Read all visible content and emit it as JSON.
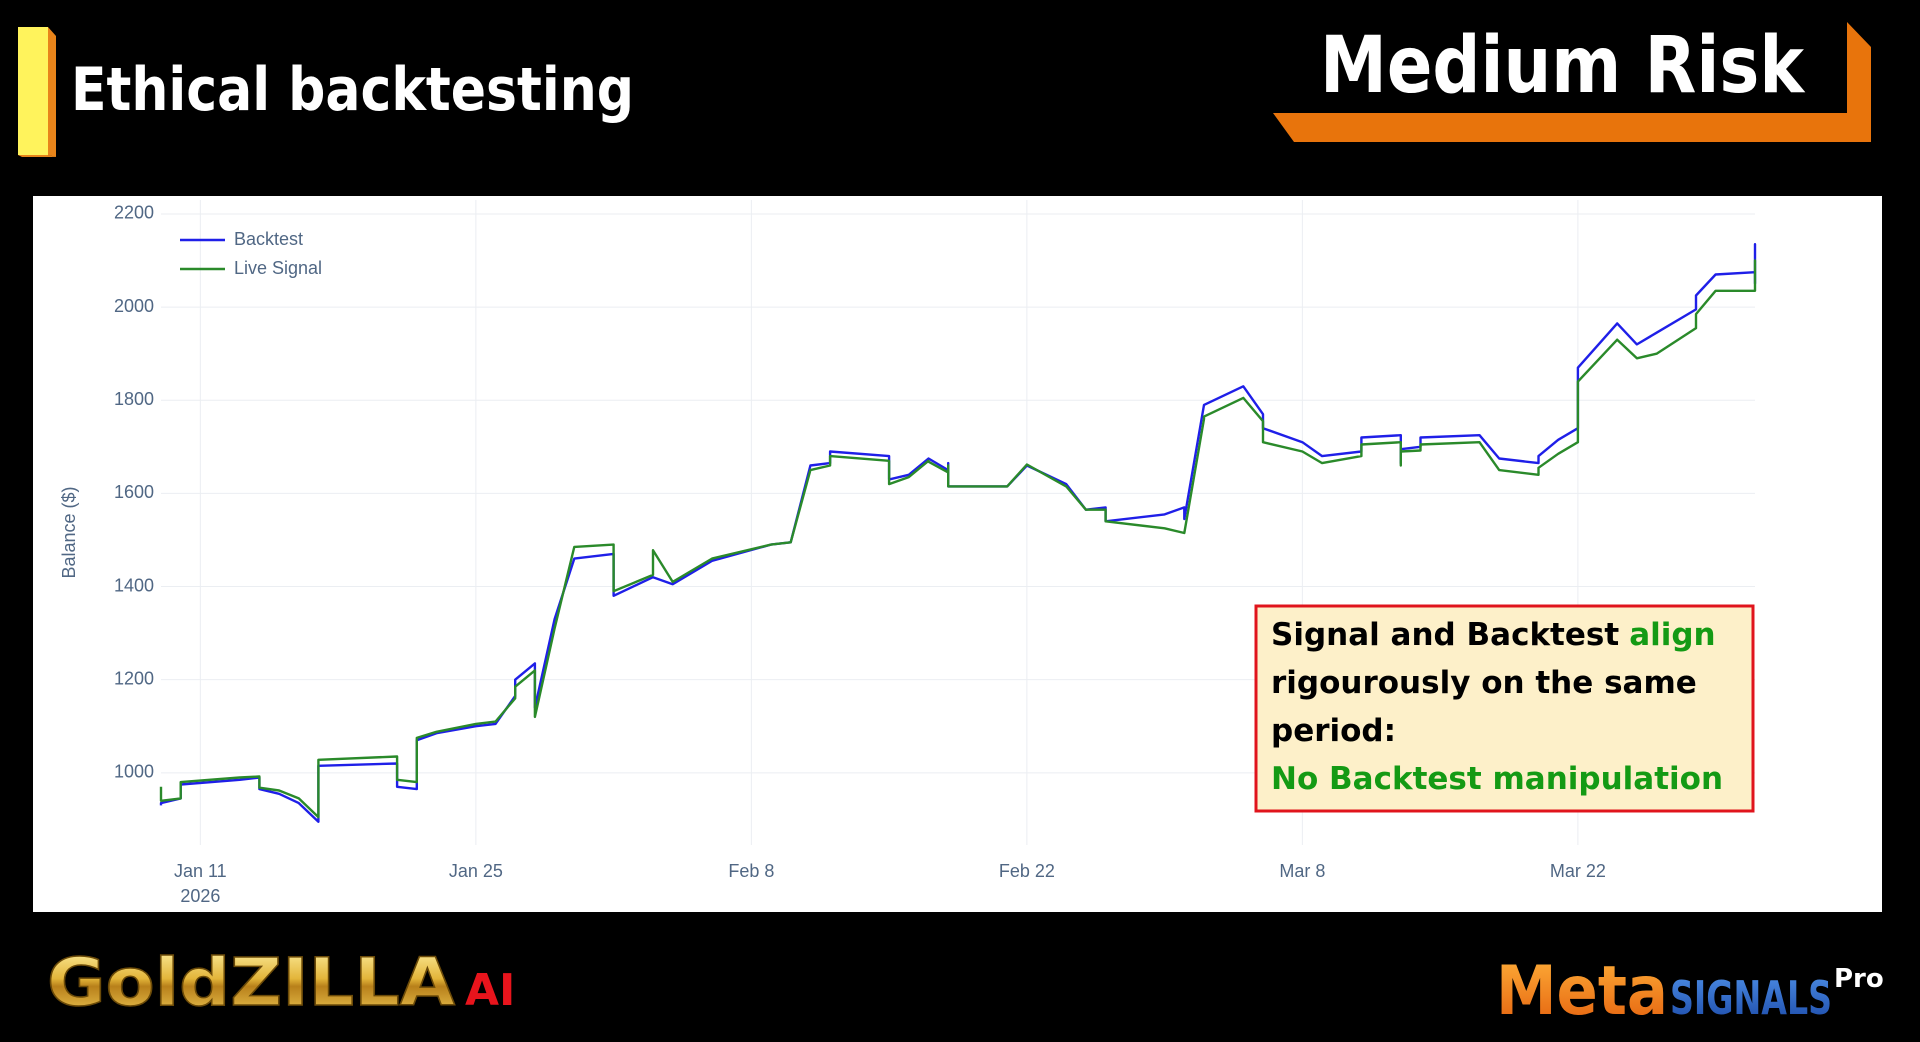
{
  "header": {
    "title": "Ethical backtesting",
    "badge": "Medium Risk"
  },
  "chart_data": {
    "type": "line",
    "y_axis_title": "Balance ($)",
    "x": [
      "2026-01-09",
      "2026-01-09",
      "2026-01-10",
      "2026-01-10",
      "2026-01-13",
      "2026-01-14",
      "2026-01-14",
      "2026-01-15",
      "2026-01-16",
      "2026-01-17",
      "2026-01-17",
      "2026-01-21",
      "2026-01-21",
      "2026-01-22",
      "2026-01-22",
      "2026-01-23",
      "2026-01-25",
      "2026-01-26",
      "2026-01-27",
      "2026-01-27",
      "2026-01-28",
      "2026-01-28",
      "2026-01-29",
      "2026-01-30",
      "2026-02-01",
      "2026-02-01",
      "2026-02-03",
      "2026-02-03",
      "2026-02-04",
      "2026-02-06",
      "2026-02-09",
      "2026-02-10",
      "2026-02-11",
      "2026-02-12",
      "2026-02-12",
      "2026-02-15",
      "2026-02-15",
      "2026-02-16",
      "2026-02-17",
      "2026-02-17",
      "2026-02-18",
      "2026-02-18",
      "2026-02-18",
      "2026-02-21",
      "2026-02-22",
      "2026-02-24",
      "2026-02-25",
      "2026-02-26",
      "2026-02-26",
      "2026-03-01",
      "2026-03-02",
      "2026-03-02",
      "2026-03-03",
      "2026-03-03",
      "2026-03-05",
      "2026-03-06",
      "2026-03-06",
      "2026-03-08",
      "2026-03-09",
      "2026-03-11",
      "2026-03-11",
      "2026-03-13",
      "2026-03-13",
      "2026-03-13",
      "2026-03-14",
      "2026-03-14",
      "2026-03-17",
      "2026-03-18",
      "2026-03-20",
      "2026-03-20",
      "2026-03-21",
      "2026-03-22",
      "2026-03-22",
      "2026-03-24",
      "2026-03-25",
      "2026-03-26",
      "2026-03-28",
      "2026-03-28",
      "2026-03-29",
      "2026-03-31",
      "2026-03-31",
      "2026-03-31",
      "2026-03-31"
    ],
    "series": [
      {
        "name": "Backtest",
        "color": "#1f1fe8",
        "values": [
          930,
          935,
          945,
          975,
          985,
          990,
          965,
          955,
          935,
          895,
          1015,
          1020,
          970,
          965,
          1070,
          1085,
          1100,
          1105,
          1165,
          1200,
          1235,
          1140,
          1330,
          1460,
          1470,
          1380,
          1420,
          1420,
          1405,
          1455,
          1490,
          1495,
          1660,
          1665,
          1690,
          1680,
          1630,
          1640,
          1675,
          1675,
          1650,
          1665,
          1615,
          1615,
          1660,
          1620,
          1565,
          1570,
          1540,
          1555,
          1570,
          1545,
          1790,
          1790,
          1830,
          1770,
          1740,
          1710,
          1680,
          1690,
          1720,
          1725,
          1665,
          1695,
          1700,
          1720,
          1725,
          1675,
          1665,
          1680,
          1715,
          1740,
          1870,
          1965,
          1920,
          1945,
          1995,
          2025,
          2070,
          2075,
          2135,
          2050,
          2050
        ]
      },
      {
        "name": "Live Signal",
        "color": "#2a8a2a",
        "values": [
          970,
          940,
          945,
          980,
          990,
          992,
          968,
          962,
          945,
          905,
          1028,
          1035,
          985,
          980,
          1075,
          1088,
          1105,
          1110,
          1160,
          1185,
          1220,
          1120,
          1310,
          1485,
          1490,
          1390,
          1425,
          1478,
          1410,
          1460,
          1490,
          1495,
          1650,
          1660,
          1680,
          1670,
          1620,
          1635,
          1670,
          1668,
          1645,
          1660,
          1615,
          1615,
          1662,
          1615,
          1565,
          1565,
          1540,
          1525,
          1515,
          1515,
          1760,
          1765,
          1805,
          1755,
          1710,
          1690,
          1665,
          1680,
          1705,
          1710,
          1660,
          1690,
          1692,
          1705,
          1710,
          1650,
          1640,
          1655,
          1685,
          1710,
          1840,
          1930,
          1890,
          1900,
          1955,
          1985,
          2035,
          2035,
          2100,
          2060,
          2050
        ]
      }
    ],
    "xlim": [
      "2026-01-09",
      "2026-03-31"
    ],
    "xticks": [
      {
        "value": "2026-01-11",
        "label": "Jan 11"
      },
      {
        "value": "2026-01-25",
        "label": "Jan 25"
      },
      {
        "value": "2026-02-08",
        "label": "Feb 8"
      },
      {
        "value": "2026-02-22",
        "label": "Feb 22"
      },
      {
        "value": "2026-03-08",
        "label": "Mar 8"
      },
      {
        "value": "2026-03-22",
        "label": "Mar 22"
      }
    ],
    "x_year_label": "2026",
    "ylim": [
      845,
      2230
    ],
    "yticks": [
      1000,
      1200,
      1400,
      1600,
      1800,
      2000,
      2200
    ],
    "grid": true,
    "legend": "top-left"
  },
  "annotation": {
    "line_1": "Signal and Backtest",
    "highlight_1": "align",
    "line_2": "rigourously on the same",
    "line_3": "period:",
    "highlight_2": "No Backtest manipulation"
  },
  "branding": {
    "left_logo": "GoldZILLA",
    "left_logo_suffix": "AI",
    "right_logo_1": "Meta",
    "right_logo_2": "SIGNALS",
    "right_logo_sup": "Pro"
  }
}
